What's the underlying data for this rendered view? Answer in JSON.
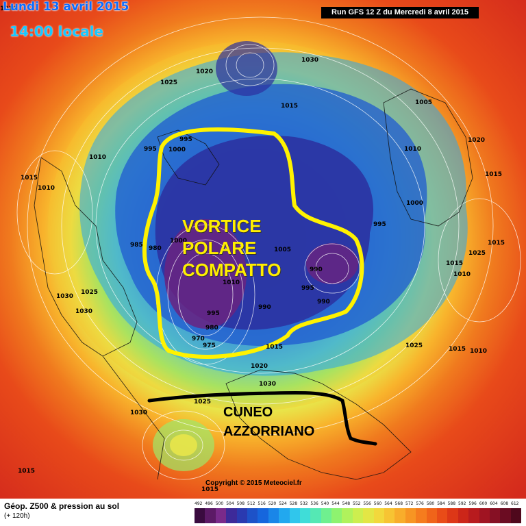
{
  "header": {
    "date": "Lundi 13 avril 2015",
    "time": "14:00 locale",
    "run": "Run GFS 12 Z du Mercredi 8 avril 2015"
  },
  "annotations": {
    "vortex_lines": [
      "VORTICE",
      "POLARE",
      "COMPATTO"
    ],
    "wedge_lines": [
      "CUNEO",
      "AZZORRIANO"
    ]
  },
  "isobars": [
    "1010",
    "1015",
    "1020",
    "1025",
    "1030",
    "1005",
    "1000",
    "995",
    "990",
    "985",
    "980",
    "975",
    "970"
  ],
  "footer": {
    "title": "Géop. Z500 & pression au sol",
    "subtitle": "(+ 120h)",
    "copyright": "Copyright © 2015 Meteociel.fr",
    "scale_values": [
      "492",
      "496",
      "500",
      "504",
      "508",
      "512",
      "516",
      "520",
      "524",
      "528",
      "532",
      "536",
      "540",
      "544",
      "548",
      "552",
      "556",
      "560",
      "564",
      "568",
      "572",
      "576",
      "580",
      "584",
      "588",
      "592",
      "596",
      "600",
      "604",
      "608",
      "612"
    ],
    "scale_colors": [
      "#3a0b3f",
      "#5c1a66",
      "#7a2a8a",
      "#3d2a99",
      "#2a3ab0",
      "#1d52c8",
      "#1666dd",
      "#1a86e8",
      "#22a8ef",
      "#30c6ec",
      "#3fddd8",
      "#55e8b4",
      "#6ff08f",
      "#8ef36f",
      "#b0f25c",
      "#cdee4f",
      "#e3e645",
      "#f2d83c",
      "#f7c433",
      "#f8ad2b",
      "#f79523",
      "#f57c1e",
      "#f0641a",
      "#e94c18",
      "#dd3717",
      "#cc2619",
      "#b81b1e",
      "#a01422",
      "#861024",
      "#6b0c22",
      "#4f081c"
    ]
  }
}
